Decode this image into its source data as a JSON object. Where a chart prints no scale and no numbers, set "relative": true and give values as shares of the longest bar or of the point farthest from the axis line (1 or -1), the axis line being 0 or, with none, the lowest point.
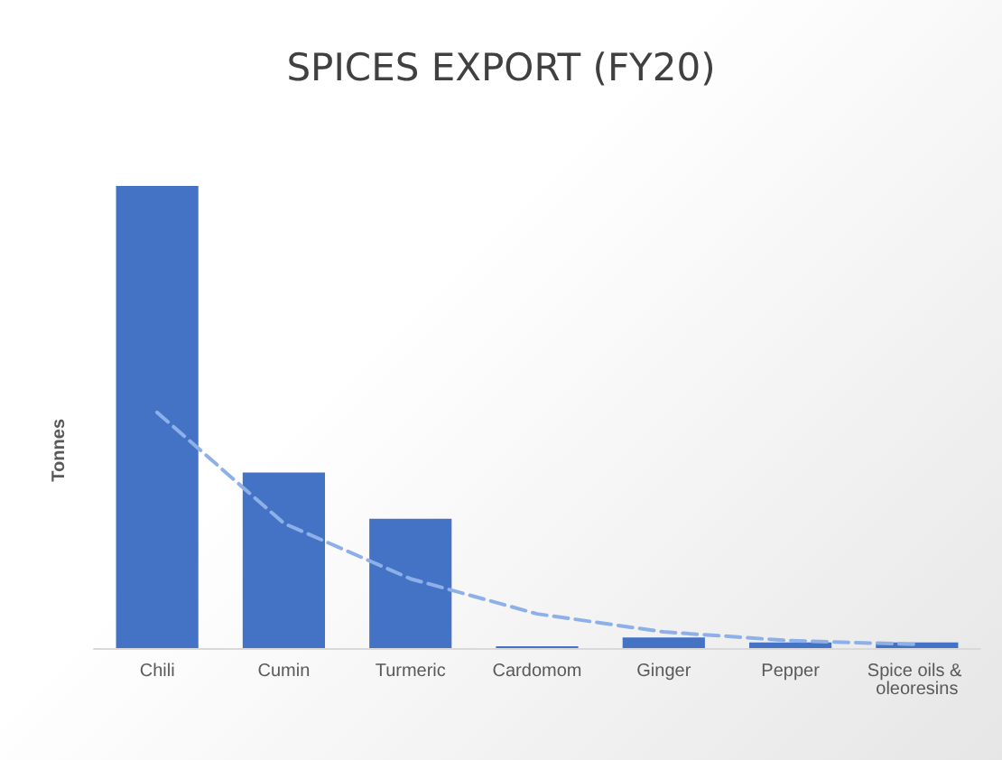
{
  "chart_data": {
    "type": "bar",
    "title": "SPICES EXPORT (FY20)",
    "ylabel": "Tonnes",
    "relative": true,
    "categories": [
      "Chili",
      "Cumin",
      "Turmeric",
      "Cardomom",
      "Ginger",
      "Pepper",
      "Spice oils & oleoresins"
    ],
    "series": [
      {
        "color": "#4472c4",
        "values": [
          1,
          0.38,
          0.28,
          0.004,
          0.023,
          0.012,
          0.012
        ]
      },
      {
        "type": "line",
        "color": "#8eb0e8",
        "line_style": "dashed",
        "marker": "none",
        "x": [
          "Chili",
          "Cumin",
          "Turmeric",
          "Cardomom",
          "Ginger",
          "Pepper",
          "Spice oils & oleoresins"
        ],
        "values": [
          0.51,
          0.27,
          0.15,
          0.074,
          0.035,
          0.016,
          0.008
        ]
      }
    ]
  }
}
